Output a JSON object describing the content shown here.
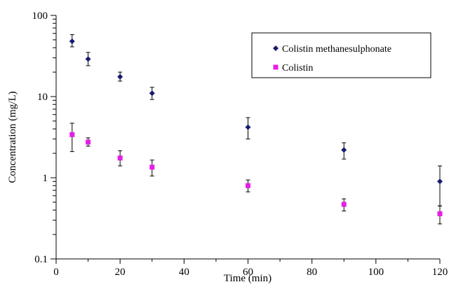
{
  "chart_data": {
    "type": "scatter",
    "title": "",
    "xlabel": "Time (min)",
    "ylabel": "Concentration (mg/L)",
    "xlim": [
      0,
      120
    ],
    "ylim": [
      0.1,
      100
    ],
    "yscale": "log",
    "grid": false,
    "legend_position": "top-right",
    "x_ticks": [
      0,
      20,
      40,
      60,
      80,
      100,
      120
    ],
    "x_tick_labels": [
      "0",
      "20",
      "40",
      "60",
      "80",
      "100",
      "120"
    ],
    "y_ticks": [
      0.1,
      1,
      10,
      100
    ],
    "y_tick_labels": [
      "0.1",
      "1",
      "10",
      "100"
    ],
    "series": [
      {
        "name": "Colistin methanesulphonate",
        "marker": "diamond",
        "color": "#1a1a6e",
        "points": [
          {
            "x": 5,
            "y": 48,
            "err_low": 41,
            "err_high": 58
          },
          {
            "x": 10,
            "y": 29,
            "err_low": 24,
            "err_high": 35
          },
          {
            "x": 20,
            "y": 17.5,
            "err_low": 15.5,
            "err_high": 20
          },
          {
            "x": 30,
            "y": 11,
            "err_low": 9.2,
            "err_high": 13
          },
          {
            "x": 60,
            "y": 4.2,
            "err_low": 3.0,
            "err_high": 5.5
          },
          {
            "x": 90,
            "y": 2.2,
            "err_low": 1.7,
            "err_high": 2.7
          },
          {
            "x": 120,
            "y": 0.9,
            "err_low": 0.45,
            "err_high": 1.4
          }
        ]
      },
      {
        "name": "Colistin",
        "marker": "square",
        "color": "#e61ee6",
        "points": [
          {
            "x": 5,
            "y": 3.4,
            "err_low": 2.1,
            "err_high": 4.7
          },
          {
            "x": 10,
            "y": 2.75,
            "err_low": 2.45,
            "err_high": 3.1
          },
          {
            "x": 20,
            "y": 1.75,
            "err_low": 1.4,
            "err_high": 2.15
          },
          {
            "x": 30,
            "y": 1.35,
            "err_low": 1.05,
            "err_high": 1.65
          },
          {
            "x": 60,
            "y": 0.8,
            "err_low": 0.67,
            "err_high": 0.94
          },
          {
            "x": 90,
            "y": 0.47,
            "err_low": 0.39,
            "err_high": 0.55
          },
          {
            "x": 120,
            "y": 0.36,
            "err_low": 0.27,
            "err_high": 0.45
          }
        ]
      }
    ]
  }
}
